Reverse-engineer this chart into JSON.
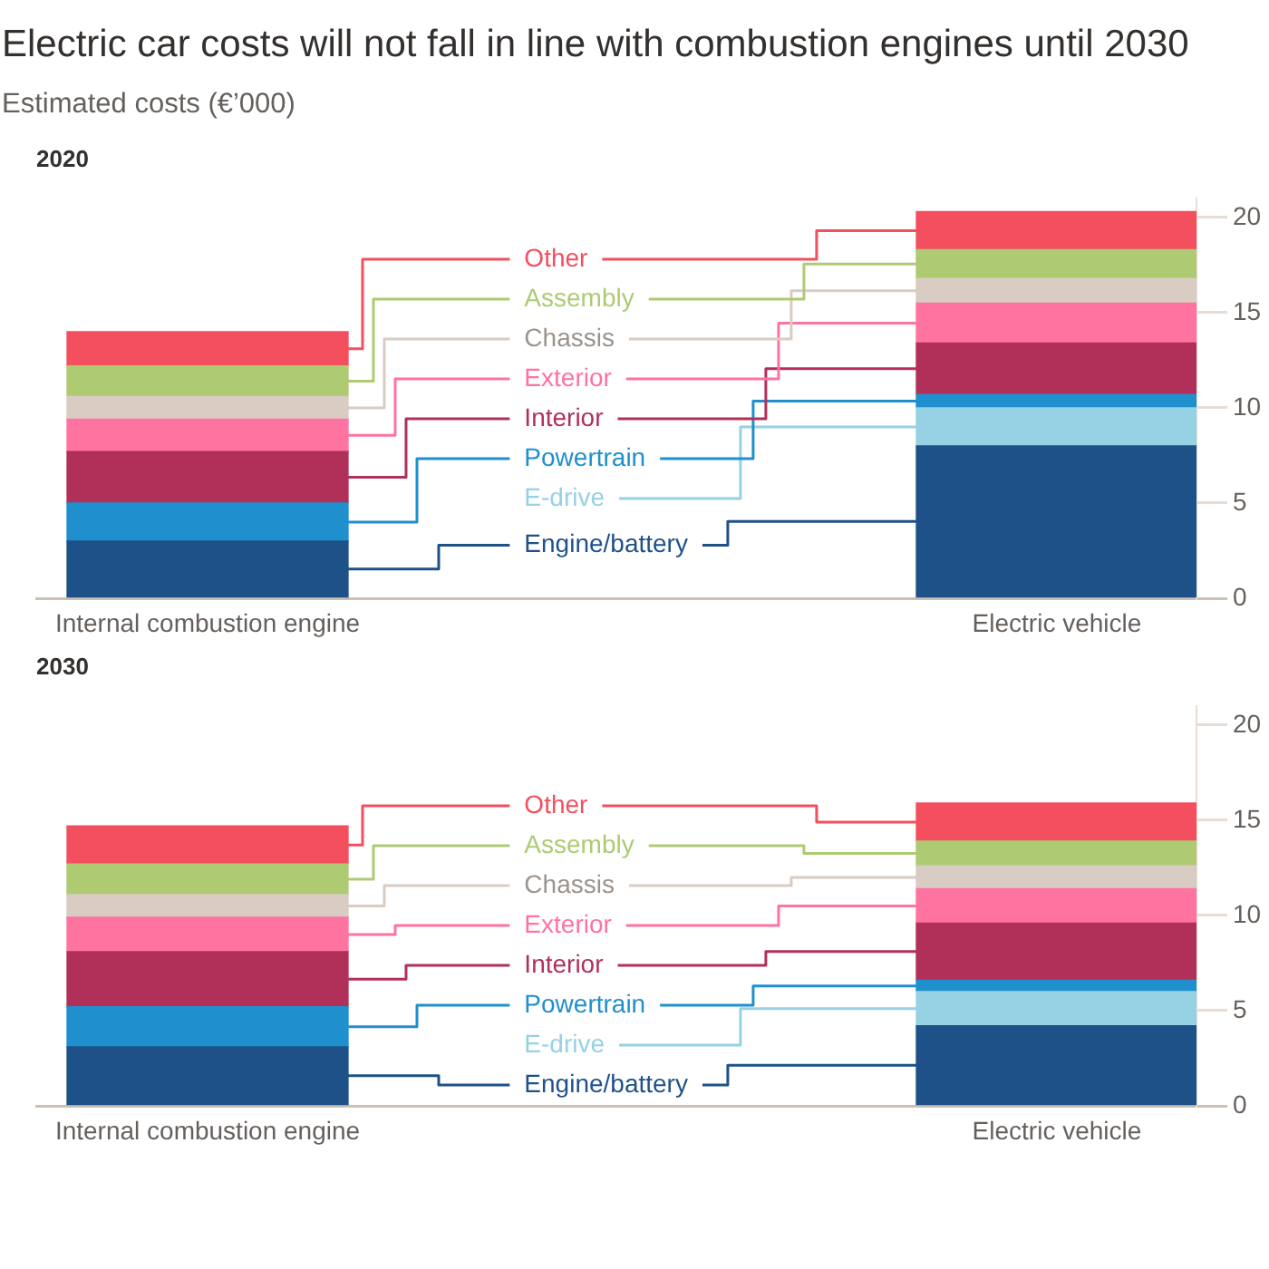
{
  "chart_data": [
    {
      "type": "bar",
      "stacked": true,
      "title": "Electric car costs will not fall in line with combustion engines until 2030",
      "ylabel": "Estimated costs (€’000)",
      "subtitle": "2020",
      "categories": [
        "Internal combustion engine",
        "Electric vehicle"
      ],
      "series": [
        {
          "name": "Engine/battery",
          "color": "#1f5189",
          "values": [
            3.0,
            8.0
          ]
        },
        {
          "name": "E-drive",
          "color": "#96d2e4",
          "values": [
            null,
            2.0
          ]
        },
        {
          "name": "Powertrain",
          "color": "#1f8fcd",
          "values": [
            2.0,
            0.7
          ]
        },
        {
          "name": "Interior",
          "color": "#b1305a",
          "values": [
            2.7,
            2.7
          ]
        },
        {
          "name": "Exterior",
          "color": "#fe73a0",
          "values": [
            1.7,
            2.1
          ]
        },
        {
          "name": "Chassis",
          "color": "#d9ccc3",
          "values": [
            1.2,
            1.3
          ]
        },
        {
          "name": "Assembly",
          "color": "#aecb73",
          "values": [
            1.6,
            1.5
          ]
        },
        {
          "name": "Other",
          "color": "#f34f5e",
          "values": [
            1.8,
            2.0
          ]
        }
      ],
      "legend": "center",
      "ylim": [
        0,
        21
      ],
      "yticks": [
        0,
        5,
        10,
        15,
        20
      ]
    },
    {
      "type": "bar",
      "stacked": true,
      "subtitle": "2030",
      "categories": [
        "Internal combustion engine",
        "Electric vehicle"
      ],
      "series": [
        {
          "name": "Engine/battery",
          "color": "#1f5189",
          "values": [
            3.1,
            4.2
          ]
        },
        {
          "name": "E-drive",
          "color": "#96d2e4",
          "values": [
            null,
            1.8
          ]
        },
        {
          "name": "Powertrain",
          "color": "#1f8fcd",
          "values": [
            2.1,
            0.6
          ]
        },
        {
          "name": "Interior",
          "color": "#b1305a",
          "values": [
            2.9,
            3.0
          ]
        },
        {
          "name": "Exterior",
          "color": "#fe73a0",
          "values": [
            1.8,
            1.8
          ]
        },
        {
          "name": "Chassis",
          "color": "#d9ccc3",
          "values": [
            1.2,
            1.2
          ]
        },
        {
          "name": "Assembly",
          "color": "#aecb73",
          "values": [
            1.6,
            1.3
          ]
        },
        {
          "name": "Other",
          "color": "#f34f5e",
          "values": [
            2.0,
            2.0
          ]
        }
      ],
      "legend": "center",
      "ylim": [
        0,
        21
      ],
      "yticks": [
        0,
        5,
        10,
        15,
        20
      ]
    }
  ]
}
